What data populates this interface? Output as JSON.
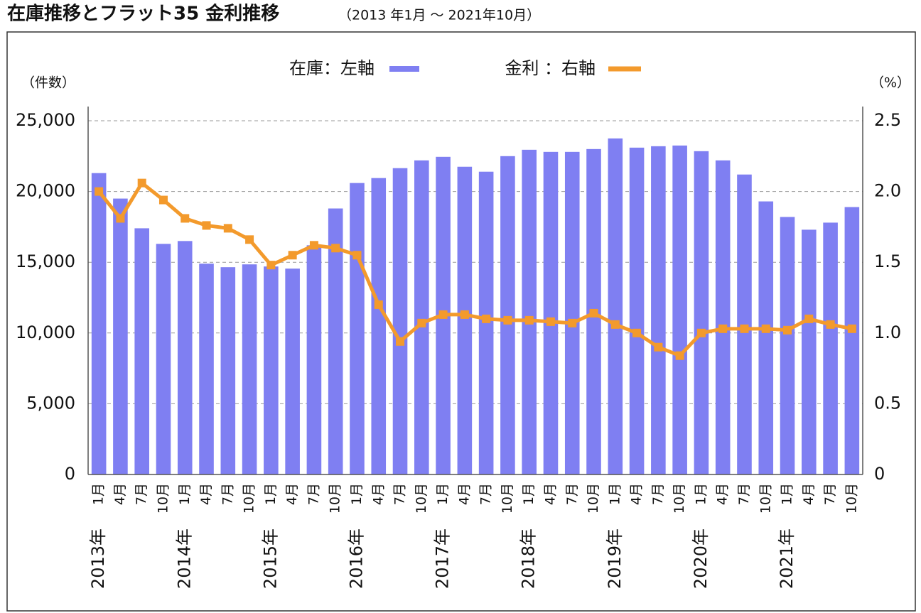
{
  "chart_data": {
    "type": "bar_line",
    "title": "在庫推移とフラット35 金利推移",
    "subtitle": "（2013 年1月 〜 2021年10月）",
    "y_label": "（件数）",
    "y2_label": "（%）",
    "categories": [
      "1月",
      "4月",
      "7月",
      "10月",
      "1月",
      "4月",
      "7月",
      "10月",
      "1月",
      "4月",
      "7月",
      "10月",
      "1月",
      "4月",
      "7月",
      "10月",
      "1月",
      "4月",
      "7月",
      "10月",
      "1月",
      "4月",
      "7月",
      "10月",
      "1月",
      "4月",
      "7月",
      "10月",
      "1月",
      "4月",
      "7月",
      "10月",
      "1月",
      "4月",
      "7月",
      "10月"
    ],
    "years": [
      "2013年",
      "2014年",
      "2015年",
      "2016年",
      "2017年",
      "2018年",
      "2019年",
      "2020年",
      "2021年"
    ],
    "series": [
      {
        "name": "在庫：左軸",
        "type": "bar",
        "color": "#7f7ff2",
        "values": [
          21300,
          19500,
          17400,
          16300,
          16500,
          14900,
          14650,
          14850,
          14700,
          14550,
          16200,
          18800,
          20600,
          20950,
          21650,
          22200,
          22450,
          21750,
          21400,
          22500,
          22950,
          22800,
          22800,
          23000,
          23750,
          23100,
          23200,
          23250,
          22850,
          22200,
          21200,
          19300,
          18200,
          17300,
          17800,
          18900
        ]
      },
      {
        "name": "金利 ：右軸",
        "type": "line",
        "axis": "y2",
        "color": "#f39a2c",
        "values": [
          2.0,
          1.81,
          2.06,
          1.94,
          1.81,
          1.76,
          1.74,
          1.66,
          1.48,
          1.55,
          1.62,
          1.6,
          1.55,
          1.2,
          0.94,
          1.07,
          1.13,
          1.13,
          1.1,
          1.09,
          1.09,
          1.08,
          1.07,
          1.14,
          1.06,
          1.0,
          0.9,
          0.84,
          1.0,
          1.03,
          1.03,
          1.03,
          1.02,
          1.1,
          1.06,
          1.03
        ]
      }
    ],
    "ylim": [
      0,
      25000
    ],
    "yticks": [
      0,
      {
        "value": 5000,
        "label": "5,000"
      },
      {
        "value": 10000,
        "label": "10,000"
      },
      {
        "value": 15000,
        "label": "15,000"
      },
      {
        "value": 20000,
        "label": "20,000"
      },
      {
        "value": 25000,
        "label": "25,000"
      }
    ],
    "y2lim": [
      0,
      2.5
    ],
    "y2ticks": [
      0,
      0.5,
      {
        "value": 1,
        "label": "1.0"
      },
      1.5,
      {
        "value": 2,
        "label": "2.0"
      },
      2.5
    ],
    "grid": true
  }
}
